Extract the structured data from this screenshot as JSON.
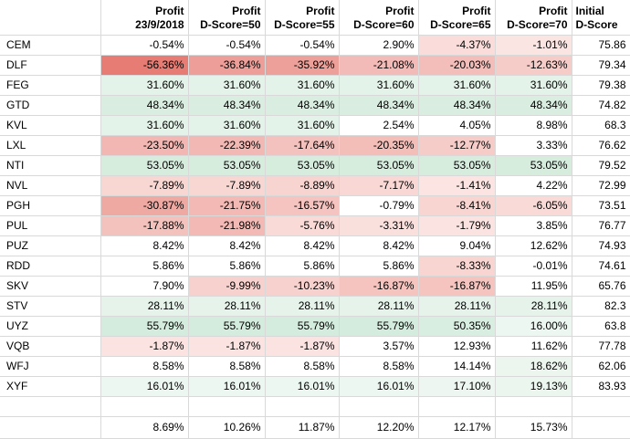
{
  "headers": [
    {
      "line1": "",
      "line2": ""
    },
    {
      "line1": "Profit",
      "line2": "23/9/2018"
    },
    {
      "line1": "Profit",
      "line2": "D-Score=50"
    },
    {
      "line1": "Profit",
      "line2": "D-Score=55"
    },
    {
      "line1": "Profit",
      "line2": "D-Score=60"
    },
    {
      "line1": "Profit",
      "line2": "D-Score=65"
    },
    {
      "line1": "Profit",
      "line2": "D-Score=70"
    },
    {
      "line1": "Initial",
      "line2": "D-Score"
    }
  ],
  "rows": [
    {
      "name": "CEM",
      "vals": [
        "-0.54%",
        "-0.54%",
        "-0.54%",
        "2.90%",
        "-4.37%",
        "-1.01%"
      ],
      "init": "75.86"
    },
    {
      "name": "DLF",
      "vals": [
        "-56.36%",
        "-36.84%",
        "-35.92%",
        "-21.08%",
        "-20.03%",
        "-12.63%"
      ],
      "init": "79.34"
    },
    {
      "name": "FEG",
      "vals": [
        "31.60%",
        "31.60%",
        "31.60%",
        "31.60%",
        "31.60%",
        "31.60%"
      ],
      "init": "79.38"
    },
    {
      "name": "GTD",
      "vals": [
        "48.34%",
        "48.34%",
        "48.34%",
        "48.34%",
        "48.34%",
        "48.34%"
      ],
      "init": "74.82"
    },
    {
      "name": "KVL",
      "vals": [
        "31.60%",
        "31.60%",
        "31.60%",
        "2.54%",
        "4.05%",
        "8.98%"
      ],
      "init": "68.3"
    },
    {
      "name": "LXL",
      "vals": [
        "-23.50%",
        "-22.39%",
        "-17.64%",
        "-20.35%",
        "-12.77%",
        "3.33%"
      ],
      "init": "76.62"
    },
    {
      "name": "NTI",
      "vals": [
        "53.05%",
        "53.05%",
        "53.05%",
        "53.05%",
        "53.05%",
        "53.05%"
      ],
      "init": "79.52"
    },
    {
      "name": "NVL",
      "vals": [
        "-7.89%",
        "-7.89%",
        "-8.89%",
        "-7.17%",
        "-1.41%",
        "4.22%"
      ],
      "init": "72.99"
    },
    {
      "name": "PGH",
      "vals": [
        "-30.87%",
        "-21.75%",
        "-16.57%",
        "-0.79%",
        "-8.41%",
        "-6.05%"
      ],
      "init": "73.51"
    },
    {
      "name": "PUL",
      "vals": [
        "-17.88%",
        "-21.98%",
        "-5.76%",
        "-3.31%",
        "-1.79%",
        "3.85%"
      ],
      "init": "76.77"
    },
    {
      "name": "PUZ",
      "vals": [
        "8.42%",
        "8.42%",
        "8.42%",
        "8.42%",
        "9.04%",
        "12.62%"
      ],
      "init": "74.93"
    },
    {
      "name": "RDD",
      "vals": [
        "5.86%",
        "5.86%",
        "5.86%",
        "5.86%",
        "-8.33%",
        "-0.01%"
      ],
      "init": "74.61"
    },
    {
      "name": "SKV",
      "vals": [
        "7.90%",
        "-9.99%",
        "-10.23%",
        "-16.87%",
        "-16.87%",
        "11.95%"
      ],
      "init": "65.76"
    },
    {
      "name": "STV",
      "vals": [
        "28.11%",
        "28.11%",
        "28.11%",
        "28.11%",
        "28.11%",
        "28.11%"
      ],
      "init": "82.3"
    },
    {
      "name": "UYZ",
      "vals": [
        "55.79%",
        "55.79%",
        "55.79%",
        "55.79%",
        "50.35%",
        "16.00%"
      ],
      "init": "63.8"
    },
    {
      "name": "VQB",
      "vals": [
        "-1.87%",
        "-1.87%",
        "-1.87%",
        "3.57%",
        "12.93%",
        "11.62%"
      ],
      "init": "77.78"
    },
    {
      "name": "WFJ",
      "vals": [
        "8.58%",
        "8.58%",
        "8.58%",
        "8.58%",
        "14.14%",
        "18.62%"
      ],
      "init": "62.06"
    },
    {
      "name": "XYF",
      "vals": [
        "16.01%",
        "16.01%",
        "16.01%",
        "16.01%",
        "17.10%",
        "19.13%"
      ],
      "init": "83.93"
    }
  ],
  "summary": [
    "8.69%",
    "10.26%",
    "11.87%",
    "12.20%",
    "12.17%",
    "15.73%"
  ],
  "colors": {
    "neg_strong": "#e67c73",
    "neg_light": "#fce8e6",
    "pos_strong": "#d4ecdd",
    "pos_light": "#eef7f1",
    "grid": "#d9d9d9"
  }
}
